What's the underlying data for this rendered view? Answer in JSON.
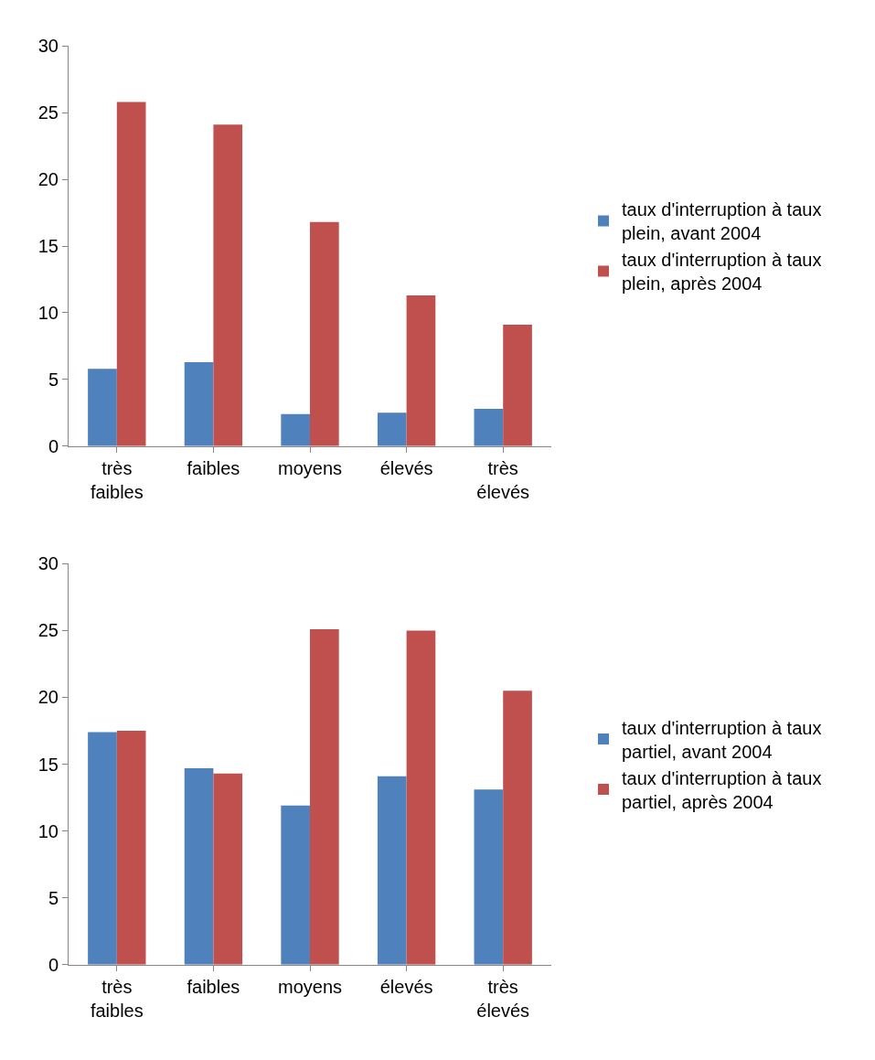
{
  "chart_data": [
    {
      "type": "bar",
      "categories": [
        "très faibles",
        "faibles",
        "moyens",
        "élevés",
        "très élevés"
      ],
      "series": [
        {
          "name": "taux d'interruption à taux plein, avant 2004",
          "color": "#4f81bd",
          "values": [
            5.8,
            6.3,
            2.4,
            2.5,
            2.8
          ]
        },
        {
          "name": "taux d'interruption à taux plein, après 2004",
          "color": "#c0504d",
          "values": [
            25.8,
            24.1,
            16.8,
            11.3,
            9.1
          ]
        }
      ],
      "ylim": [
        0,
        30
      ],
      "yticks": [
        0,
        5,
        10,
        15,
        20,
        25,
        30
      ],
      "grid": false,
      "legend": "right"
    },
    {
      "type": "bar",
      "categories": [
        "très faibles",
        "faibles",
        "moyens",
        "élevés",
        "très élevés"
      ],
      "series": [
        {
          "name": "taux d'interruption à taux partiel, avant 2004",
          "color": "#4f81bd",
          "values": [
            17.4,
            14.7,
            11.9,
            14.1,
            13.1
          ]
        },
        {
          "name": "taux d'interruption à taux partiel, après 2004",
          "color": "#c0504d",
          "values": [
            17.5,
            14.3,
            25.1,
            25.0,
            20.5
          ]
        }
      ],
      "ylim": [
        0,
        30
      ],
      "yticks": [
        0,
        5,
        10,
        15,
        20,
        25,
        30
      ],
      "grid": false,
      "legend": "right"
    }
  ]
}
